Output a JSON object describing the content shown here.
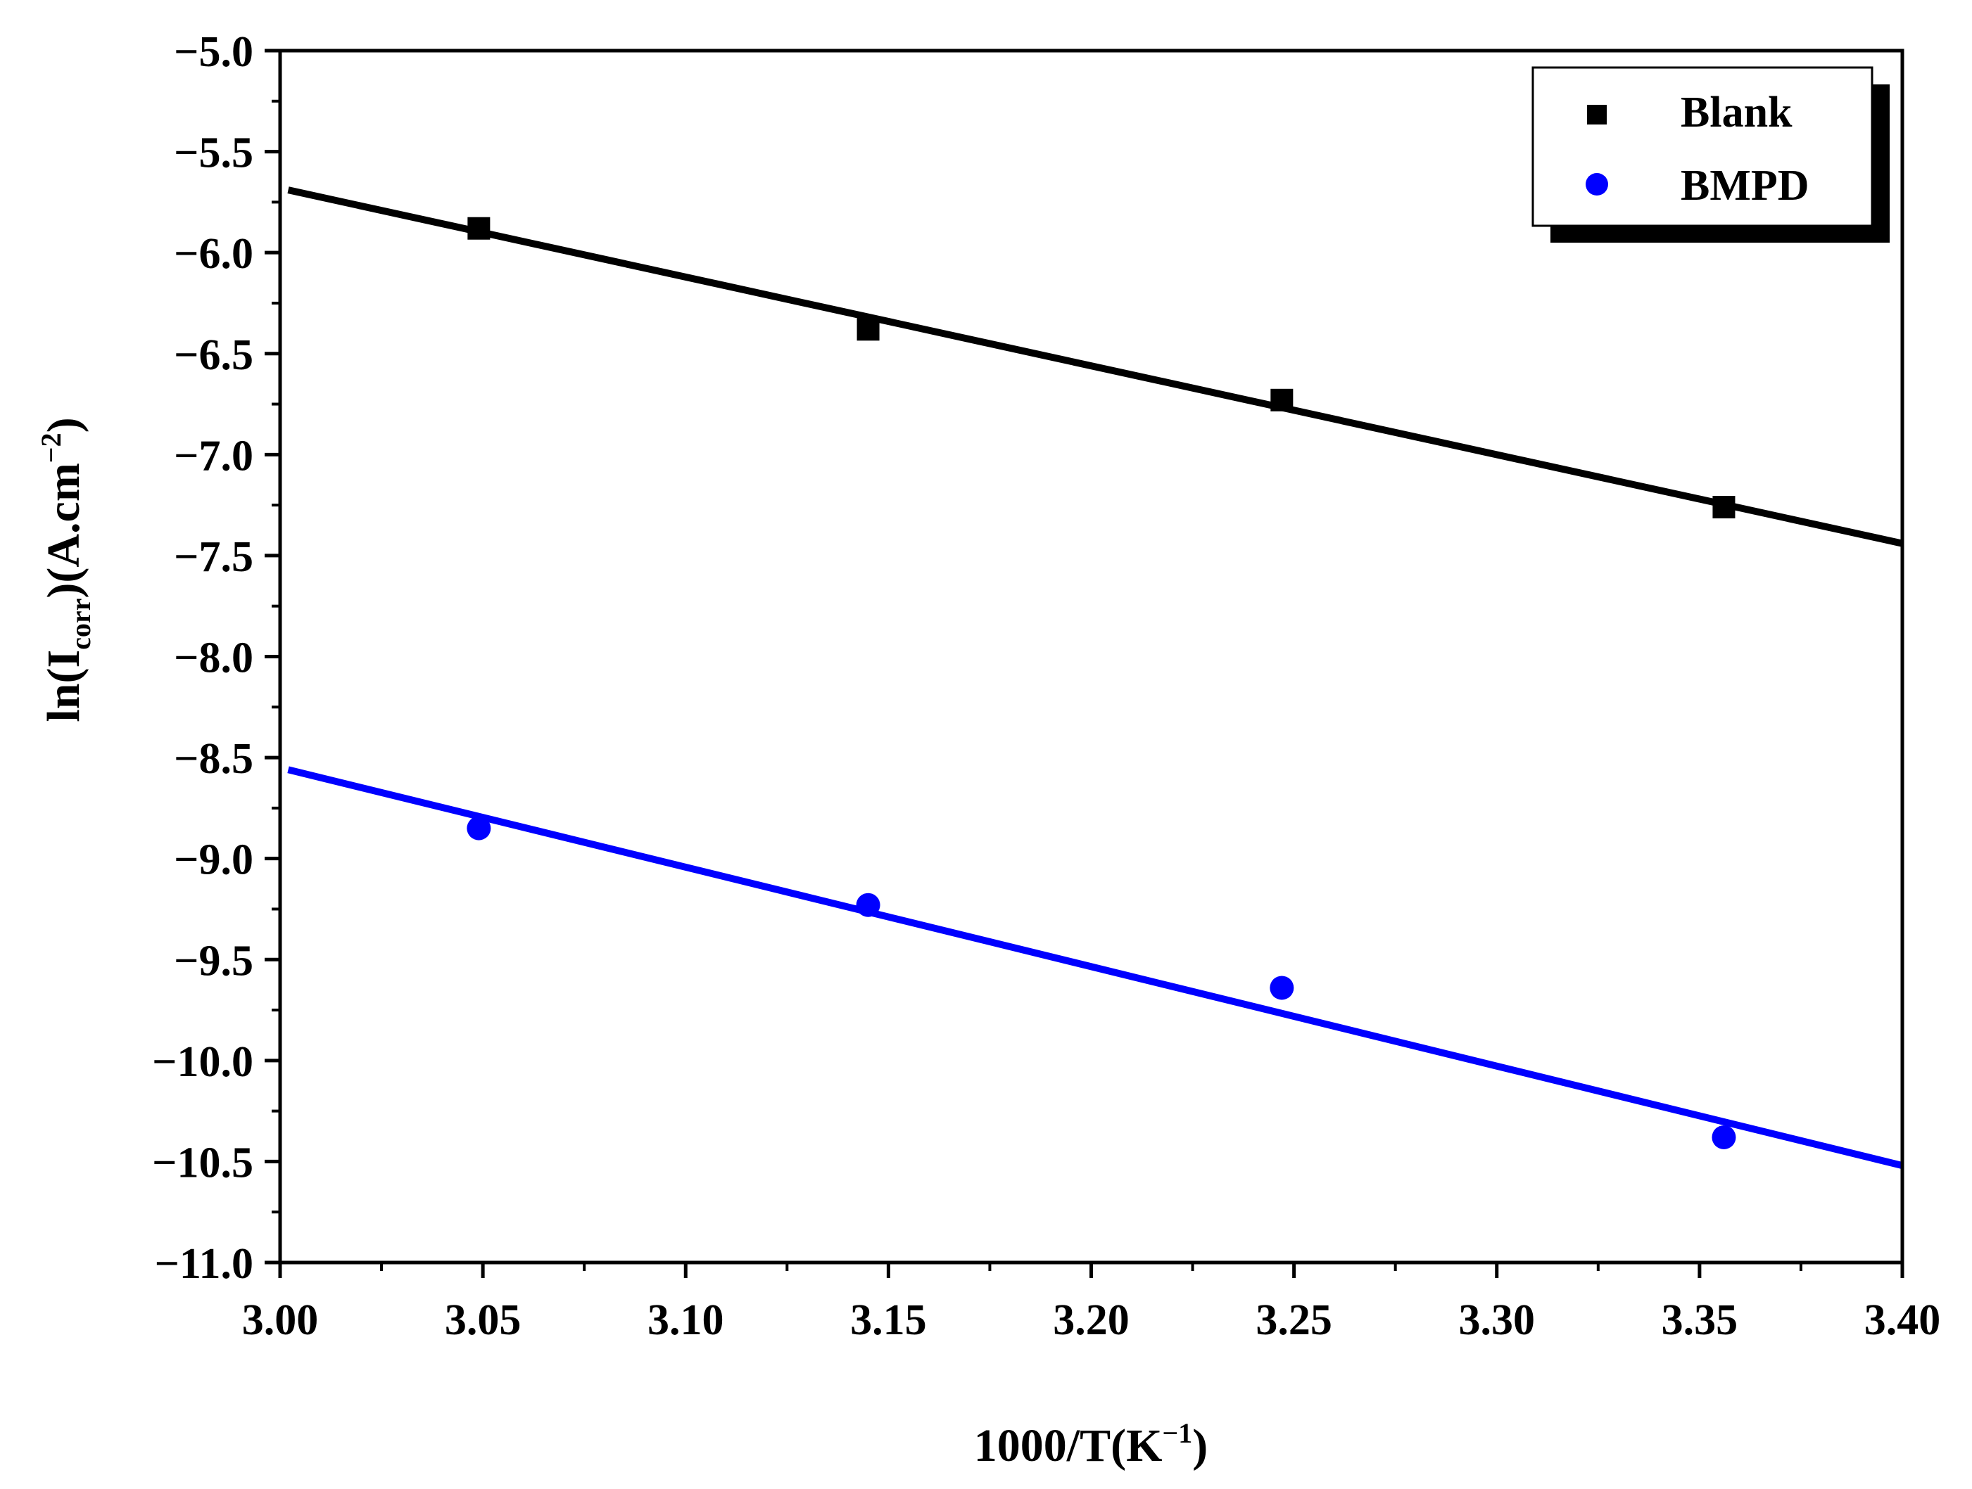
{
  "chart_data": {
    "type": "scatter",
    "xlabel": {
      "base": "1000/T(K",
      "sup": "−1",
      "close": ")"
    },
    "ylabel": {
      "pre": "ln(I",
      "sub": "corr",
      "mid": ")(A.cm",
      "sup": "−2",
      "close": ")"
    },
    "xlim": [
      3.0,
      3.4
    ],
    "ylim": [
      -11.0,
      -5.0
    ],
    "x_ticks": [
      "3.00",
      "3.05",
      "3.10",
      "3.15",
      "3.20",
      "3.25",
      "3.30",
      "3.35",
      "3.40"
    ],
    "x_tick_values": [
      3.0,
      3.05,
      3.1,
      3.15,
      3.2,
      3.25,
      3.3,
      3.35,
      3.4
    ],
    "y_ticks": [
      "−5.0",
      "−5.5",
      "−6.0",
      "−6.5",
      "−7.0",
      "−7.5",
      "−8.0",
      "−8.5",
      "−9.0",
      "−9.5",
      "−10.0",
      "−10.5",
      "−11.0"
    ],
    "y_tick_values": [
      -5.0,
      -5.5,
      -6.0,
      -6.5,
      -7.0,
      -7.5,
      -8.0,
      -8.5,
      -9.0,
      -9.5,
      -10.0,
      -10.5,
      -11.0
    ],
    "legend_position": "top-right",
    "series": [
      {
        "name": "Blank",
        "marker": "square",
        "color": "#000000",
        "x": [
          3.049,
          3.145,
          3.247,
          3.356
        ],
        "y": [
          -5.88,
          -6.38,
          -6.73,
          -7.26
        ],
        "fit": {
          "x": [
            3.002,
            3.4
          ],
          "y": [
            -5.69,
            -7.44
          ]
        }
      },
      {
        "name": "BMPD",
        "marker": "circle",
        "color": "#0000ff",
        "x": [
          3.049,
          3.145,
          3.247,
          3.356
        ],
        "y": [
          -8.85,
          -9.23,
          -9.64,
          -10.38
        ],
        "fit": {
          "x": [
            3.002,
            3.4
          ],
          "y": [
            -8.56,
            -10.52
          ]
        }
      }
    ]
  }
}
